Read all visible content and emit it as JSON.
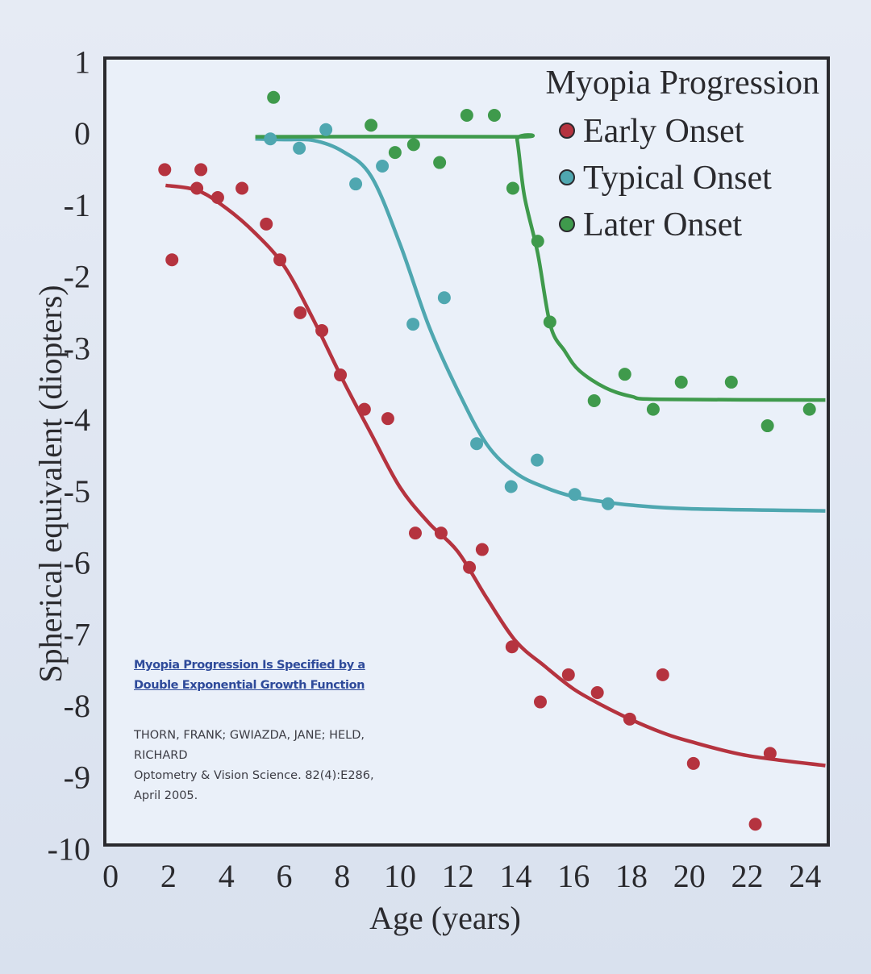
{
  "chart_data": {
    "type": "scatter",
    "title": "Myopia Progression",
    "xlabel": "Age (years)",
    "ylabel": "Spherical equivalent (diopters)",
    "xlim": [
      -0.2,
      24.8
    ],
    "ylim": [
      -9.95,
      1.05
    ],
    "xticks": [
      0,
      2,
      4,
      6,
      8,
      10,
      12,
      14,
      16,
      18,
      20,
      22,
      24
    ],
    "yticks": [
      1,
      0,
      -1,
      -2,
      -3,
      -4,
      -5,
      -6,
      -7,
      -8,
      -9,
      -10
    ],
    "grid": false,
    "legend_placement": "top-right",
    "series": [
      {
        "name": "Early Onset",
        "color": "#b5333f",
        "points": [
          [
            1.87,
            -0.51
          ],
          [
            2.12,
            -1.77
          ],
          [
            3.12,
            -0.51
          ],
          [
            2.98,
            -0.77
          ],
          [
            3.7,
            -0.9
          ],
          [
            4.54,
            -0.77
          ],
          [
            5.38,
            -1.27
          ],
          [
            5.85,
            -1.77
          ],
          [
            6.55,
            -2.51
          ],
          [
            7.3,
            -2.76
          ],
          [
            7.94,
            -3.38
          ],
          [
            8.77,
            -3.86
          ],
          [
            9.58,
            -3.99
          ],
          [
            10.53,
            -5.59
          ],
          [
            11.42,
            -5.59
          ],
          [
            12.4,
            -6.07
          ],
          [
            12.84,
            -5.82
          ],
          [
            13.87,
            -7.18
          ],
          [
            14.85,
            -7.95
          ],
          [
            15.82,
            -7.57
          ],
          [
            16.82,
            -7.82
          ],
          [
            17.94,
            -8.19
          ],
          [
            19.08,
            -7.57
          ],
          [
            20.14,
            -8.81
          ],
          [
            22.79,
            -8.67
          ],
          [
            22.28,
            -9.66
          ]
        ],
        "fit": [
          [
            1.9,
            -0.73
          ],
          [
            3,
            -0.8
          ],
          [
            4,
            -1.05
          ],
          [
            5,
            -1.4
          ],
          [
            6,
            -1.86
          ],
          [
            7,
            -2.6
          ],
          [
            8,
            -3.43
          ],
          [
            9,
            -4.2
          ],
          [
            10,
            -4.95
          ],
          [
            11,
            -5.45
          ],
          [
            12,
            -5.85
          ],
          [
            13,
            -6.5
          ],
          [
            14,
            -7.1
          ],
          [
            15,
            -7.45
          ],
          [
            16,
            -7.77
          ],
          [
            17,
            -8.0
          ],
          [
            18,
            -8.2
          ],
          [
            19,
            -8.37
          ],
          [
            20,
            -8.5
          ],
          [
            22,
            -8.7
          ],
          [
            24.7,
            -8.84
          ]
        ]
      },
      {
        "name": "Typical Onset",
        "color": "#4fa7b0",
        "points": [
          [
            5.52,
            -0.08
          ],
          [
            6.52,
            -0.21
          ],
          [
            7.44,
            0.05
          ],
          [
            8.47,
            -0.71
          ],
          [
            9.39,
            -0.46
          ],
          [
            10.45,
            -2.67
          ],
          [
            11.53,
            -2.3
          ],
          [
            12.65,
            -4.34
          ],
          [
            13.84,
            -4.94
          ],
          [
            14.74,
            -4.57
          ],
          [
            16.04,
            -5.05
          ],
          [
            17.19,
            -5.18
          ]
        ],
        "fit": [
          [
            5,
            -0.08
          ],
          [
            6,
            -0.09
          ],
          [
            7,
            -0.1
          ],
          [
            8,
            -0.25
          ],
          [
            9,
            -0.6
          ],
          [
            10,
            -1.55
          ],
          [
            11,
            -2.7
          ],
          [
            12,
            -3.6
          ],
          [
            13,
            -4.35
          ],
          [
            14,
            -4.75
          ],
          [
            15,
            -4.95
          ],
          [
            16,
            -5.08
          ],
          [
            17,
            -5.15
          ],
          [
            18,
            -5.2
          ],
          [
            20,
            -5.25
          ],
          [
            24.7,
            -5.28
          ]
        ]
      },
      {
        "name": "Later Onset",
        "color": "#3f9a4c",
        "points": [
          [
            5.63,
            0.5
          ],
          [
            9.0,
            0.11
          ],
          [
            9.83,
            -0.27
          ],
          [
            10.47,
            -0.16
          ],
          [
            11.37,
            -0.41
          ],
          [
            12.31,
            0.25
          ],
          [
            13.26,
            0.25
          ],
          [
            13.9,
            -0.77
          ],
          [
            14.76,
            -1.51
          ],
          [
            15.18,
            -2.64
          ],
          [
            16.71,
            -3.74
          ],
          [
            17.77,
            -3.37
          ],
          [
            18.75,
            -3.86
          ],
          [
            19.72,
            -3.48
          ],
          [
            21.45,
            -3.48
          ],
          [
            22.7,
            -4.09
          ],
          [
            24.15,
            -3.86
          ]
        ],
        "fit": [
          [
            5,
            -0.05
          ],
          [
            13.9,
            -0.05
          ],
          [
            14.05,
            -0.1
          ],
          [
            14.3,
            -0.88
          ],
          [
            14.76,
            -1.68
          ],
          [
            15.2,
            -2.69
          ],
          [
            15.7,
            -3.05
          ],
          [
            16.2,
            -3.32
          ],
          [
            17.1,
            -3.56
          ],
          [
            18,
            -3.68
          ],
          [
            19,
            -3.72
          ],
          [
            24.7,
            -3.73
          ]
        ]
      }
    ],
    "annotations": {
      "link_line1": "Myopia Progression Is Specified by a",
      "link_line2": "Double Exponential  Growth Function",
      "authors_line1": "THORN, FRANK; GWIAZDA, JANE; HELD,",
      "authors_line2": "RICHARD",
      "journal_line1": "Optometry & Vision Science. 82(4):E286,",
      "journal_line2": "April 2005."
    }
  }
}
